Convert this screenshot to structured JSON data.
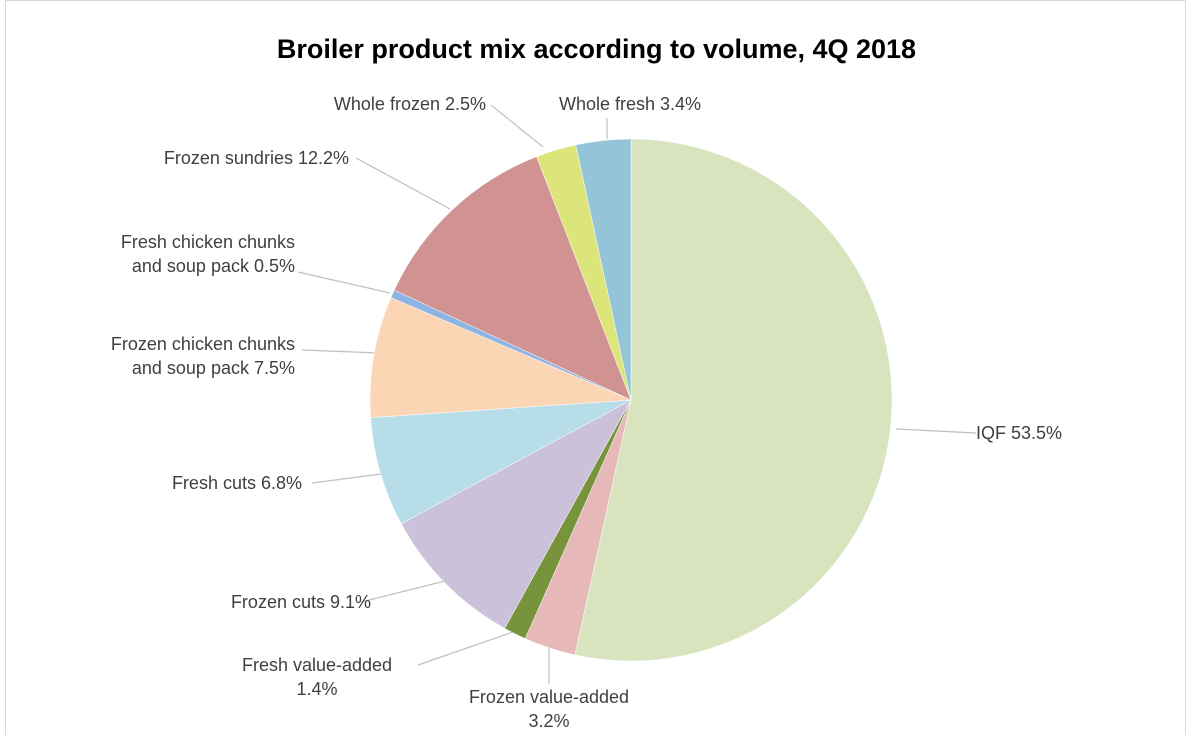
{
  "chart_data": {
    "type": "pie",
    "title": "Broiler product mix according to volume, 4Q 2018",
    "unit": "%",
    "start_angle_deg": 0,
    "direction": "clockwise",
    "legend": "none (data labels with leader lines)",
    "slices": [
      {
        "name": "IQF",
        "value": 53.5,
        "label_lines": [
          "IQF 53.5%"
        ],
        "color": "#d7e4bd"
      },
      {
        "name": "Frozen value-added",
        "value": 3.2,
        "label_lines": [
          "Frozen value-added",
          "3.2%"
        ],
        "color": "#e6b9b8"
      },
      {
        "name": "Fresh value-added",
        "value": 1.4,
        "label_lines": [
          "Fresh value-added",
          "1.4%"
        ],
        "color": "#77933c"
      },
      {
        "name": "Frozen cuts",
        "value": 9.1,
        "label_lines": [
          "Frozen cuts 9.1%"
        ],
        "color": "#ccc1da"
      },
      {
        "name": "Fresh cuts",
        "value": 6.8,
        "label_lines": [
          "Fresh cuts 6.8%"
        ],
        "color": "#b7dee8"
      },
      {
        "name": "Frozen chicken chunks and soup pack",
        "value": 7.5,
        "label_lines": [
          "Frozen chicken chunks",
          "and soup pack 7.5%"
        ],
        "color": "#fcd5b5"
      },
      {
        "name": "Fresh chicken chunks and soup pack",
        "value": 0.5,
        "label_lines": [
          "Fresh chicken chunks",
          "and soup pack 0.5%"
        ],
        "color": "#8eb4e3"
      },
      {
        "name": "Frozen sundries",
        "value": 12.2,
        "label_lines": [
          "Frozen sundries 12.2%"
        ],
        "color": "#d09391"
      },
      {
        "name": "Whole frozen",
        "value": 2.5,
        "label_lines": [
          "Whole frozen 2.5%"
        ],
        "color": "#dce57a"
      },
      {
        "name": "Whole fresh",
        "value": 3.4,
        "label_lines": [
          "Whole fresh 3.4%"
        ],
        "color": "#93c4d8"
      }
    ],
    "leader_line_color": "#bfbfbf"
  }
}
